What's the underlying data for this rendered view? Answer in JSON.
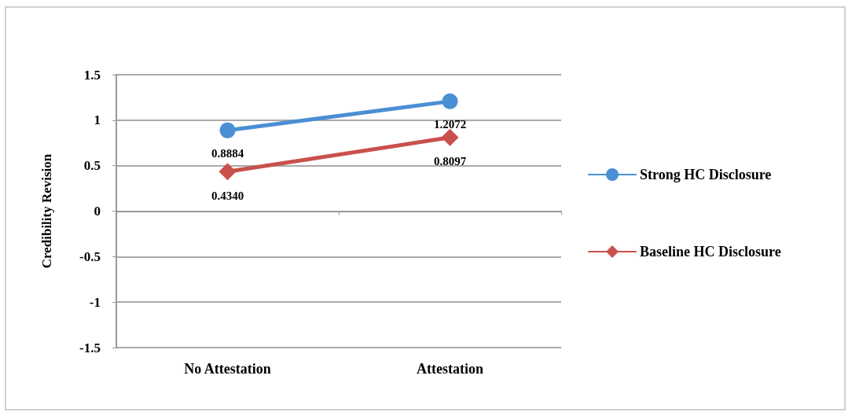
{
  "chart_data": {
    "type": "line",
    "ylabel": "Credibility Revision",
    "categories": [
      "No Attestation",
      "Attestation"
    ],
    "series": [
      {
        "name": "Strong HC Disclosure",
        "color": "#4a8fd4",
        "marker": "circle",
        "values": [
          0.8884,
          1.2072
        ],
        "value_labels": [
          "0.8884",
          "1.2072"
        ]
      },
      {
        "name": "Baseline HC Disclosure",
        "color": "#c9504b",
        "marker": "diamond",
        "values": [
          0.434,
          0.8097
        ],
        "value_labels": [
          "0.4340",
          "0.8097"
        ]
      }
    ],
    "ylim": [
      -1.5,
      1.5
    ],
    "yticks": [
      -1.5,
      -1,
      -0.5,
      0,
      0.5,
      1,
      1.5
    ],
    "grid": "y",
    "legend": "right",
    "line_style": "solid"
  }
}
